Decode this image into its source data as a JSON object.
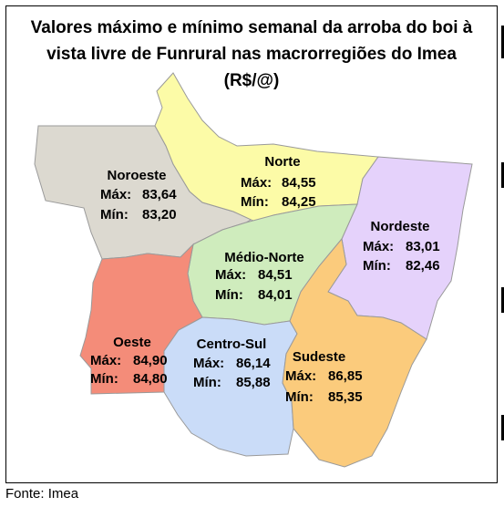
{
  "title": {
    "line1": "Valores máximo e mínimo semanal da arroba do boi à",
    "line2": "vista livre de Funrural nas macrorregiões do Imea",
    "line3": "(R$/@)"
  },
  "labels": {
    "max": "Máx:",
    "min": "Mín:"
  },
  "regions": [
    {
      "key": "noroeste",
      "name": "Noroeste",
      "max": "83,64",
      "min": "83,20",
      "color": "#dcd9d0"
    },
    {
      "key": "norte",
      "name": "Norte",
      "max": "84,55",
      "min": "84,25",
      "color": "#fcfba7"
    },
    {
      "key": "nordeste",
      "name": "Nordeste",
      "max": "83,01",
      "min": "82,46",
      "color": "#e5d2fb"
    },
    {
      "key": "medio-norte",
      "name": "Médio-Norte",
      "max": "84,51",
      "min": "84,01",
      "color": "#cfecbd"
    },
    {
      "key": "oeste",
      "name": "Oeste",
      "max": "84,90",
      "min": "84,80",
      "color": "#f48c79"
    },
    {
      "key": "centro-sul",
      "name": "Centro-Sul",
      "max": "86,14",
      "min": "85,88",
      "color": "#cadcf8"
    },
    {
      "key": "sudeste",
      "name": "Sudeste",
      "max": "86,85",
      "min": "85,35",
      "color": "#fbcb7c"
    }
  ],
  "source": "Fonte: Imea"
}
